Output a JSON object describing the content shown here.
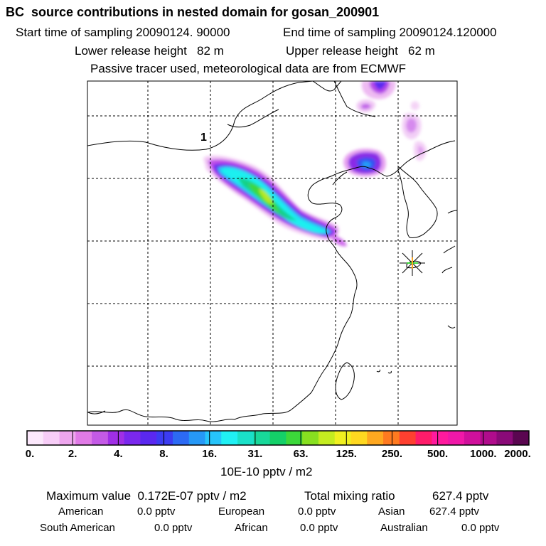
{
  "title": "BC  source contributions in nested domain for gosan_200901",
  "sampling": {
    "start_label": "Start time of sampling 20090124. 90000",
    "end_label": "End time of sampling 20090124.120000"
  },
  "release": {
    "lower_label": "Lower release height   82 m",
    "upper_label": "Upper release height   62 m"
  },
  "tracer_note": "Passive tracer used, meteorological data are from ECMWF",
  "map": {
    "marker_label": "1",
    "station_icon": "star-burst-icon"
  },
  "colorbar": {
    "colors": [
      "#fce8fc",
      "#f7cdf7",
      "#eea6ee",
      "#e07ae6",
      "#c45ae6",
      "#a02fe6",
      "#7a28ee",
      "#5a28f0",
      "#3c3cf2",
      "#2c6af4",
      "#2698f6",
      "#26c4fa",
      "#20f0f4",
      "#1ae0c8",
      "#18d89a",
      "#14d068",
      "#3cd83a",
      "#88e020",
      "#c4ec20",
      "#f0f020",
      "#ffd820",
      "#ffa820",
      "#ff7a20",
      "#ff4030",
      "#ff1c6a",
      "#ff1a9e",
      "#f018a8",
      "#d0109c",
      "#b00c8c",
      "#8a0a78",
      "#5a0650"
    ],
    "ticks": [
      "0.",
      "2.",
      "4.",
      "8.",
      "16.",
      "31.",
      "63.",
      "125.",
      "250.",
      "500.",
      "1000.",
      "2000."
    ],
    "unit": "10E-10 pptv / m2"
  },
  "summary": {
    "max_label": "Maximum value  0.172E-07 pptv / m2",
    "total_label": "Total mixing ratio",
    "total_value": "627.4 pptv"
  },
  "regions": [
    {
      "name": "American",
      "value": "0.0 pptv"
    },
    {
      "name": "European",
      "value": "0.0 pptv"
    },
    {
      "name": "Asian",
      "value": "627.4 pptv"
    },
    {
      "name": "South American",
      "value": "0.0 pptv"
    },
    {
      "name": "African",
      "value": "0.0 pptv"
    },
    {
      "name": "Australian",
      "value": "0.0 pptv"
    }
  ]
}
